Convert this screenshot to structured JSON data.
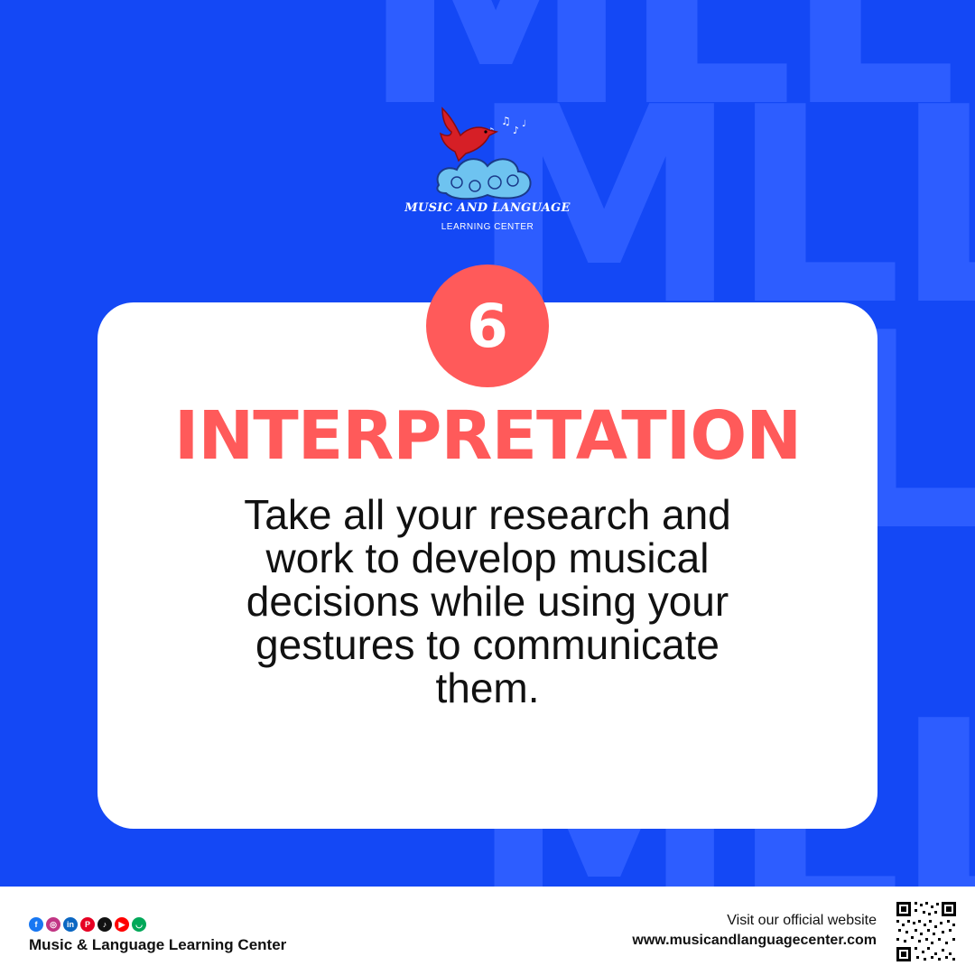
{
  "background": {
    "color": "#1448f5",
    "watermark_letters": [
      "MLL",
      "MLL",
      "MLL",
      "MLL"
    ]
  },
  "logo": {
    "title": "MUSIC AND LANGUAGE",
    "subtitle": "LEARNING CENTER"
  },
  "card": {
    "number": "6",
    "heading": "INTERPRETATION",
    "body": "Take all your research and\nwork to develop musical\ndecisions  while using your\ngestures to communicate\nthem.",
    "accent_color": "#ff5a5a"
  },
  "footer": {
    "social_icons": [
      "facebook-icon",
      "instagram-icon",
      "linkedin-icon",
      "pinterest-icon",
      "tiktok-icon",
      "youtube-icon",
      "shopping-bag-icon"
    ],
    "org_name": "Music & Language Learning Center",
    "visit_text": "Visit our official website",
    "website": "www.musicandlanguagecenter.com"
  }
}
